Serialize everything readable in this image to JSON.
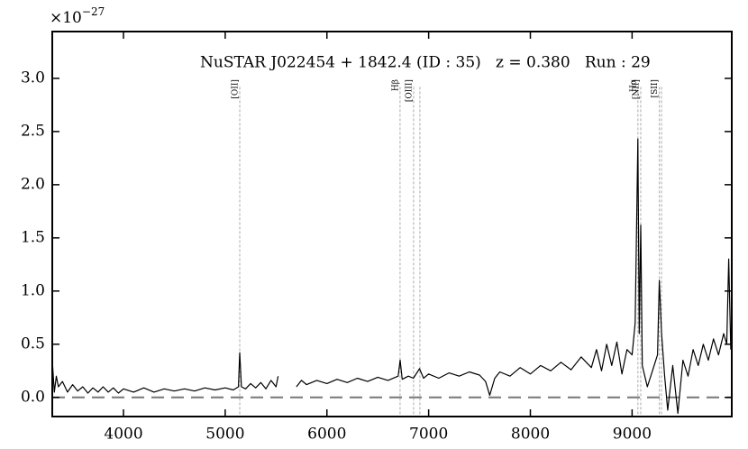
{
  "chart_data": {
    "type": "line",
    "title": "NuSTAR J022454 + 1842.4 (ID : 35)   z = 0.380   Run : 29",
    "y_offset_text": {
      "base": "×10",
      "exponent": "−27"
    },
    "xlim": [
      3300,
      9980
    ],
    "ylim": [
      -0.18,
      3.44
    ],
    "xticks": [
      4000,
      5000,
      6000,
      7000,
      8000,
      9000
    ],
    "yticks": [
      {
        "value": 0,
        "label": "0.0"
      },
      0.5,
      {
        "value": 1,
        "label": "1.0"
      },
      1.5,
      {
        "value": 2,
        "label": "2.0"
      },
      2.5,
      {
        "value": 3,
        "label": "3.0"
      }
    ],
    "hline": 0,
    "lines": [
      {
        "label": "[OII]",
        "x": [
          5143
        ]
      },
      {
        "label": "Hβ",
        "x": [
          6719
        ]
      },
      {
        "label": "[OIII]",
        "x": [
          6852,
          6914
        ]
      },
      {
        "label": "Hα",
        "x": [
          9057
        ]
      },
      {
        "label": "[NII]",
        "x": [
          9085
        ]
      },
      {
        "label": "[SII]",
        "x": [
          9268,
          9289
        ]
      }
    ],
    "series": [
      {
        "color": "#000000",
        "x": [
          3300,
          3320,
          3340,
          3360,
          3400,
          3450,
          3500,
          3550,
          3600,
          3650,
          3700,
          3750,
          3800,
          3850,
          3900,
          3950,
          4000,
          4100,
          4200,
          4300,
          4400,
          4500,
          4600,
          4700,
          4800,
          4900,
          5000,
          5080,
          5130,
          5143,
          5160,
          5200,
          5250,
          5300,
          5350,
          5400,
          5450,
          5500,
          5520,
          5530,
          5700,
          5750,
          5800,
          5900,
          6000,
          6100,
          6200,
          6300,
          6400,
          6500,
          6600,
          6700,
          6720,
          6740,
          6800,
          6850,
          6910,
          6950,
          7000,
          7100,
          7200,
          7300,
          7400,
          7500,
          7560,
          7600,
          7650,
          7700,
          7800,
          7900,
          8000,
          8100,
          8200,
          8300,
          8400,
          8500,
          8600,
          8650,
          8700,
          8750,
          8800,
          8850,
          8900,
          8950,
          9000,
          9030,
          9057,
          9070,
          9085,
          9100,
          9150,
          9200,
          9250,
          9268,
          9290,
          9320,
          9350,
          9400,
          9450,
          9500,
          9550,
          9600,
          9650,
          9700,
          9750,
          9800,
          9850,
          9900,
          9930,
          9950,
          9970
        ],
        "values": [
          0.35,
          0.05,
          0.2,
          0.1,
          0.15,
          0.05,
          0.12,
          0.06,
          0.1,
          0.04,
          0.09,
          0.05,
          0.1,
          0.05,
          0.09,
          0.04,
          0.08,
          0.05,
          0.09,
          0.05,
          0.08,
          0.06,
          0.08,
          0.06,
          0.09,
          0.07,
          0.09,
          0.07,
          0.1,
          0.42,
          0.1,
          0.08,
          0.13,
          0.09,
          0.14,
          0.08,
          0.16,
          0.1,
          0.2,
          null,
          0.1,
          0.16,
          0.12,
          0.16,
          0.13,
          0.17,
          0.14,
          0.18,
          0.15,
          0.19,
          0.16,
          0.2,
          0.35,
          0.17,
          0.2,
          0.18,
          0.27,
          0.18,
          0.22,
          0.18,
          0.23,
          0.2,
          0.24,
          0.21,
          0.15,
          0.02,
          0.18,
          0.24,
          0.2,
          0.28,
          0.22,
          0.3,
          0.25,
          0.33,
          0.26,
          0.38,
          0.28,
          0.45,
          0.25,
          0.5,
          0.3,
          0.52,
          0.22,
          0.45,
          0.4,
          0.7,
          2.43,
          0.6,
          1.62,
          0.3,
          0.1,
          0.25,
          0.4,
          1.1,
          0.6,
          0.2,
          -0.12,
          0.3,
          -0.15,
          0.35,
          0.2,
          0.45,
          0.3,
          0.5,
          0.35,
          0.55,
          0.4,
          0.6,
          0.5,
          1.3,
          0.45
        ]
      }
    ]
  }
}
